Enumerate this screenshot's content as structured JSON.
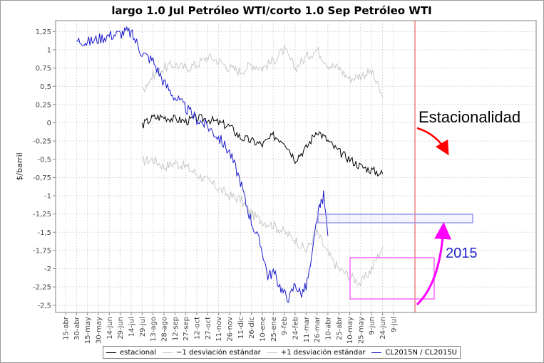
{
  "colors": {
    "estacional": "#000000",
    "desv_minus": "#c8c8c8",
    "desv_plus": "#c8c8c8",
    "cl2015": "#1a1acc",
    "vline": "#e84040",
    "arrow_estacionalidad": "#ff0000",
    "arrow_2015": "#ff00ff",
    "box_blue": "#9999ee",
    "box_magenta": "#ff66ff",
    "annotation_2015": "#2222cc"
  },
  "chart_data": {
    "type": "line",
    "title": "largo 1.0 Jul Petróleo WTI/corto 1.0 Sep Petróleo WTI",
    "xlabel": "",
    "ylabel": "$/barril",
    "ylim": [
      -2.6,
      1.4
    ],
    "y_ticks": [
      "1,25",
      "1",
      "0,75",
      "0,5",
      "0,25",
      "0",
      "-0,25",
      "-0,5",
      "-0,75",
      "-1",
      "-1,25",
      "-1,5",
      "-1,75",
      "-2",
      "-2,25",
      "-2,5"
    ],
    "x_ticks": [
      "15-abr",
      "30-abr",
      "15-may",
      "30-may",
      "14-jun",
      "29-jun",
      "14-jul",
      "29-jul",
      "13-ago",
      "28-ago",
      "12-sep",
      "27-sep",
      "12-oct",
      "27-oct",
      "11-nov",
      "26-nov",
      "11-dic",
      "26-dic",
      "10-ene",
      "25-ene",
      "9-feb",
      "24-feb",
      "11-mar",
      "26-mar",
      "10-abr",
      "25-abr",
      "10-may",
      "25-may",
      "9-jun",
      "24-jun",
      "9-jul"
    ],
    "grid": true,
    "legend_position": "bottom",
    "series": [
      {
        "name": "estacional",
        "key": "estacional",
        "x": [
          7,
          8,
          9,
          10,
          11,
          12,
          13,
          14,
          15,
          16,
          17,
          18,
          19,
          20,
          21,
          22,
          23,
          24,
          25,
          26,
          27,
          28,
          29
        ],
        "y": [
          -0.03,
          0.07,
          0.08,
          0.05,
          0.02,
          0.06,
          0.05,
          0.0,
          -0.05,
          -0.2,
          -0.25,
          -0.3,
          -0.18,
          -0.25,
          -0.5,
          -0.35,
          -0.1,
          -0.25,
          -0.4,
          -0.5,
          -0.6,
          -0.65,
          -0.7
        ]
      },
      {
        "name": "-1 desviación estándar",
        "key": "desv_minus",
        "x": [
          7,
          8,
          9,
          10,
          11,
          12,
          13,
          14,
          15,
          16,
          17,
          18,
          19,
          20,
          21,
          22,
          23,
          24,
          25,
          26,
          27,
          28,
          29
        ],
        "y": [
          -0.53,
          -0.5,
          -0.6,
          -0.55,
          -0.6,
          -0.7,
          -0.8,
          -0.9,
          -1.0,
          -1.05,
          -1.25,
          -1.35,
          -1.4,
          -1.5,
          -1.6,
          -1.75,
          -1.5,
          -1.8,
          -2.0,
          -2.1,
          -2.2,
          -2.0,
          -1.7
        ]
      },
      {
        "name": "+1 desviación estándar",
        "key": "desv_plus",
        "x": [
          7,
          8,
          9,
          10,
          11,
          12,
          13,
          14,
          15,
          16,
          17,
          18,
          19,
          20,
          21,
          22,
          23,
          24,
          25,
          26,
          27,
          28,
          29
        ],
        "y": [
          0.45,
          0.65,
          0.75,
          0.8,
          0.75,
          0.8,
          0.9,
          0.85,
          0.75,
          0.7,
          0.8,
          0.75,
          0.85,
          1.0,
          0.75,
          0.9,
          1.0,
          0.8,
          0.75,
          0.6,
          0.65,
          0.7,
          0.35
        ]
      },
      {
        "name": "CL2015N / CL2015U",
        "key": "cl2015",
        "x": [
          1,
          1.5,
          2,
          3,
          4,
          5,
          5.5,
          6,
          6.5,
          7,
          8,
          9,
          10,
          11,
          12,
          13,
          14,
          15,
          16,
          16.5,
          17,
          17.5,
          18,
          18.5,
          19,
          19.5,
          20,
          20.5,
          21,
          21.5,
          22,
          22.5,
          23,
          23.3,
          23.6,
          24
        ],
        "y": [
          1.12,
          1.13,
          1.1,
          1.15,
          1.2,
          1.22,
          1.25,
          1.22,
          1.1,
          0.95,
          0.85,
          0.55,
          0.35,
          0.2,
          0.05,
          -0.05,
          -0.2,
          -0.4,
          -0.8,
          -1.1,
          -1.35,
          -1.55,
          -1.75,
          -2.1,
          -2.05,
          -2.2,
          -2.35,
          -2.4,
          -2.2,
          -2.35,
          -2.25,
          -1.9,
          -1.3,
          -1.15,
          -1.0,
          -1.55
        ]
      }
    ]
  },
  "annotations": {
    "estacionalidad": "Estacionalidad",
    "year_2015": "2015"
  },
  "legend": {
    "items": [
      {
        "key": "estacional",
        "label": "estacional"
      },
      {
        "key": "desv_minus",
        "label": "−1 desviación estándar"
      },
      {
        "key": "desv_plus",
        "label": "+1 desviación estándar"
      },
      {
        "key": "cl2015",
        "label": "CL2015N / CL2015U"
      }
    ]
  }
}
